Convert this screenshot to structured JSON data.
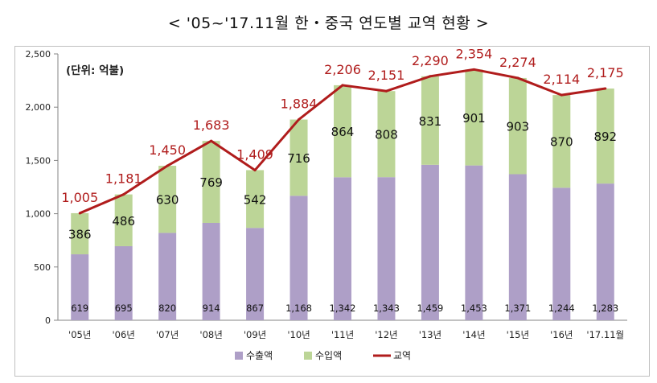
{
  "title": "< '05~'17.11월 한・중국 연도별 교역 현황 >",
  "chart_data": {
    "type": "bar",
    "stacked": true,
    "unit_label": "(단위: 억불)",
    "categories": [
      "'05년",
      "'06년",
      "'07년",
      "'08년",
      "'09년",
      "'10년",
      "'11년",
      "'12년",
      "'13년",
      "'14년",
      "'15년",
      "'16년",
      "'17.11월"
    ],
    "series": [
      {
        "name": "수출액",
        "type": "bar",
        "color": "#ae9fc7",
        "values": [
          619,
          695,
          820,
          914,
          867,
          1168,
          1342,
          1343,
          1459,
          1453,
          1371,
          1244,
          1283
        ]
      },
      {
        "name": "수입액",
        "type": "bar",
        "color": "#bcd597",
        "values": [
          386,
          486,
          630,
          769,
          542,
          716,
          864,
          808,
          831,
          901,
          903,
          870,
          892
        ]
      },
      {
        "name": "교역",
        "type": "line",
        "color": "#b01c1c",
        "values": [
          1005,
          1181,
          1450,
          1683,
          1409,
          1884,
          2206,
          2151,
          2290,
          2354,
          2274,
          2114,
          2175
        ]
      }
    ],
    "yticks": [
      0,
      500,
      1000,
      1500,
      2000,
      2500
    ],
    "ylim": [
      0,
      2500
    ],
    "grid": false,
    "legend": "bottom"
  }
}
